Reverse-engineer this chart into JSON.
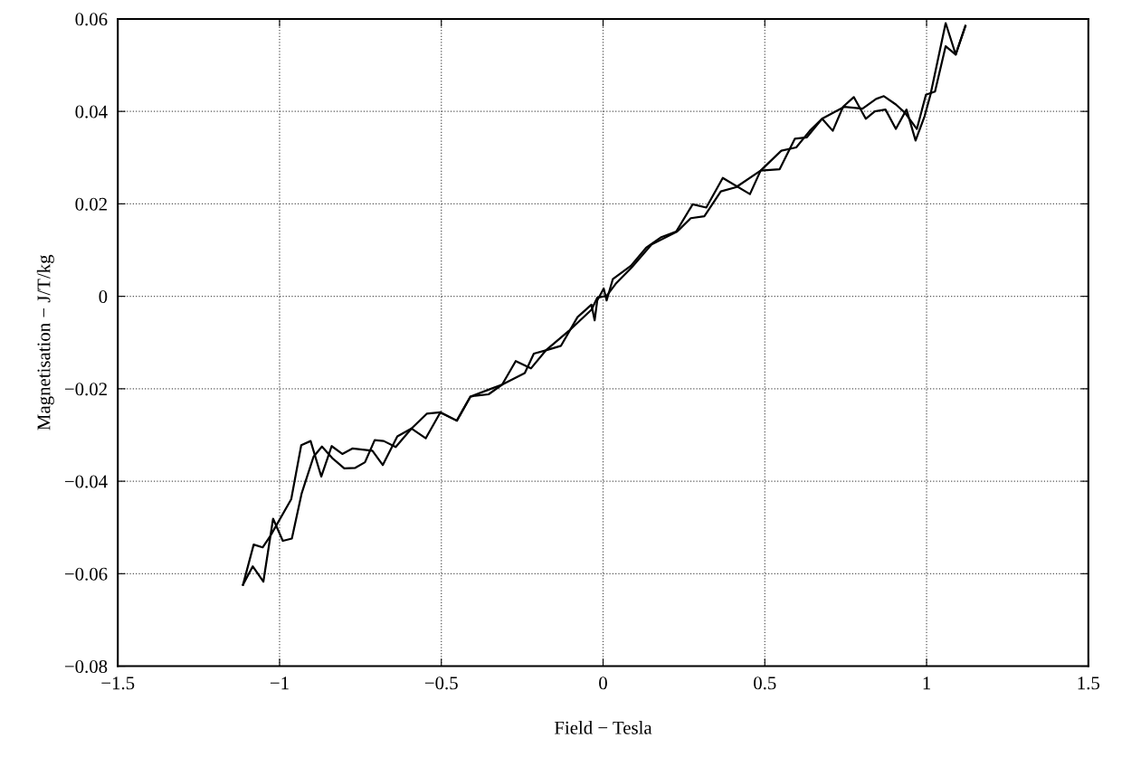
{
  "chart_data": {
    "type": "line",
    "xlabel": "Field − Tesla",
    "ylabel": "Magnetisation − J/T/kg",
    "xlim": [
      -1.5,
      1.5
    ],
    "xticks": [
      {
        "value": -1.5,
        "label": "−1.5"
      },
      {
        "value": -1,
        "label": "−1"
      },
      {
        "value": -0.5,
        "label": "−0.5"
      },
      0,
      0.5,
      1,
      1.5
    ],
    "ylim": [
      -0.08,
      0.06
    ],
    "yticks": [
      {
        "value": -0.08,
        "label": "−0.08"
      },
      {
        "value": -0.06,
        "label": "−0.06"
      },
      {
        "value": -0.04,
        "label": "−0.04"
      },
      {
        "value": -0.02,
        "label": "−0.02"
      },
      0,
      0.02,
      0.04,
      0.06
    ],
    "grid": true,
    "line_style": "solid",
    "series": [
      {
        "color": "#000000",
        "x": [
          -1.113,
          -1.08,
          -1.052,
          -1.029,
          -0.964,
          -0.933,
          -0.904,
          -0.871,
          -0.839,
          -0.806,
          -0.774,
          -0.713,
          -0.681,
          -0.636,
          -0.592,
          -0.548,
          -0.503,
          -0.452,
          -0.41,
          -0.396,
          -0.354,
          -0.312,
          -0.27,
          -0.223,
          -0.177,
          -0.13,
          -0.079,
          -0.036,
          -0.026,
          -0.018,
          0.002,
          0.011,
          0.03,
          0.086,
          0.133,
          0.18,
          0.226,
          0.277,
          0.319,
          0.37,
          0.454,
          0.487,
          0.546,
          0.593,
          0.63,
          0.677,
          0.71,
          0.742,
          0.775,
          0.812,
          0.84,
          0.873,
          0.905,
          0.938,
          0.966,
          0.994,
          1.012,
          1.059,
          1.09,
          1.12
        ],
        "values": [
          -0.0624,
          -0.0537,
          -0.0543,
          -0.0519,
          -0.0439,
          -0.0322,
          -0.0313,
          -0.039,
          -0.0324,
          -0.0341,
          -0.0329,
          -0.0334,
          -0.0365,
          -0.0303,
          -0.0286,
          -0.0307,
          -0.0251,
          -0.0269,
          -0.0217,
          -0.0215,
          -0.0212,
          -0.0191,
          -0.014,
          -0.0156,
          -0.0117,
          -0.0107,
          -0.0045,
          -0.0018,
          -0.0052,
          -0.0009,
          0.0017,
          -0.0009,
          0.0037,
          0.0066,
          0.0105,
          0.0128,
          0.014,
          0.0199,
          0.0192,
          0.0256,
          0.0221,
          0.0272,
          0.0275,
          0.0341,
          0.0344,
          0.0384,
          0.0358,
          0.041,
          0.0431,
          0.0384,
          0.04,
          0.0404,
          0.0362,
          0.0404,
          0.0337,
          0.039,
          0.0436,
          0.0591,
          0.0523,
          0.0585
        ]
      },
      {
        "color": "#000000",
        "x": [
          -1.113,
          -1.083,
          -1.05,
          -1.02,
          -0.99,
          -0.962,
          -0.932,
          -0.895,
          -0.869,
          -0.837,
          -0.8,
          -0.766,
          -0.736,
          -0.706,
          -0.678,
          -0.641,
          -0.592,
          -0.545,
          -0.503,
          -0.452,
          -0.41,
          -0.354,
          -0.312,
          -0.242,
          -0.214,
          -0.177,
          -0.106,
          -0.036,
          -0.018,
          0.011,
          0.039,
          0.089,
          0.15,
          0.229,
          0.271,
          0.313,
          0.364,
          0.411,
          0.487,
          0.551,
          0.597,
          0.639,
          0.677,
          0.746,
          0.802,
          0.844,
          0.868,
          0.905,
          0.933,
          0.97,
          0.998,
          1.026,
          1.059,
          1.09,
          1.12
        ],
        "values": [
          -0.0624,
          -0.0584,
          -0.0617,
          -0.0481,
          -0.0529,
          -0.0524,
          -0.0427,
          -0.0347,
          -0.0325,
          -0.035,
          -0.0372,
          -0.0371,
          -0.0359,
          -0.0311,
          -0.0313,
          -0.0326,
          -0.0286,
          -0.0254,
          -0.0251,
          -0.0269,
          -0.0217,
          -0.0202,
          -0.0191,
          -0.0166,
          -0.0124,
          -0.0117,
          -0.0075,
          -0.0029,
          -0.0003,
          0.0001,
          0.0027,
          0.0063,
          0.0112,
          0.014,
          0.0169,
          0.0173,
          0.0227,
          0.0236,
          0.0272,
          0.0315,
          0.0322,
          0.0358,
          0.0384,
          0.041,
          0.0406,
          0.0427,
          0.0433,
          0.0415,
          0.0397,
          0.0362,
          0.0436,
          0.0443,
          0.0541,
          0.0523,
          0.0585
        ]
      }
    ]
  }
}
